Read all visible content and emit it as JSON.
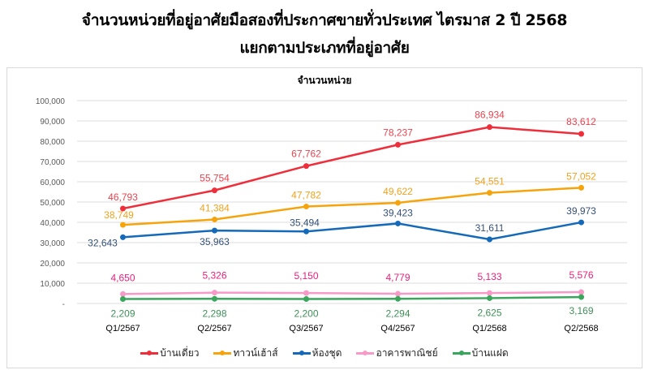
{
  "title": {
    "line1": "จำนวนหน่วยที่อยู่อาศัยมือสองที่ประกาศขายทั่วประเทศ ไตรมาส 2 ปี 2568",
    "line2": "แยกตามประเภทที่อยู่อาศัย"
  },
  "chart_data": {
    "type": "line",
    "title": "จำนวนหน่วย",
    "xlabel": "",
    "ylabel": "",
    "ylim": [
      0,
      100000
    ],
    "yticks": [
      "-",
      "10,000",
      "20,000",
      "30,000",
      "40,000",
      "50,000",
      "60,000",
      "70,000",
      "80,000",
      "90,000",
      "100,000"
    ],
    "grid": true,
    "legend_position": "bottom",
    "categories": [
      "Q1/2567",
      "Q2/2567",
      "Q3/2567",
      "Q4/2567",
      "Q1/2568",
      "Q2/2568"
    ],
    "series": [
      {
        "name": "บ้านเดี่ยว",
        "color": "#EE2E3B",
        "label_color": "#E8434E",
        "values": [
          46793,
          55754,
          67762,
          78237,
          86934,
          83612
        ],
        "labels": [
          "46,793",
          "55,754",
          "67,762",
          "78,237",
          "86,934",
          "83,612"
        ]
      },
      {
        "name": "ทาวน์เฮ้าส์",
        "color": "#F5A40C",
        "label_color": "#F2A21D",
        "values": [
          38749,
          41384,
          47782,
          49622,
          54551,
          57052
        ],
        "labels": [
          "38,749",
          "41,384",
          "47,782",
          "49,622",
          "54,551",
          "57,052"
        ]
      },
      {
        "name": "ห้องชุด",
        "color": "#1469B8",
        "label_color": "#34507A",
        "values": [
          32643,
          35963,
          35494,
          39423,
          31611,
          39973
        ],
        "labels": [
          "32,643",
          "35,963",
          "35,494",
          "39,423",
          "31,611",
          "39,973"
        ]
      },
      {
        "name": "อาคารพาณิชย์",
        "color": "#F79AC8",
        "label_color": "#E8207A",
        "values": [
          4650,
          5326,
          5150,
          4779,
          5133,
          5576
        ],
        "labels": [
          "4,650",
          "5,326",
          "5,150",
          "4,779",
          "5,133",
          "5,576"
        ]
      },
      {
        "name": "บ้านแฝด",
        "color": "#3AA65C",
        "label_color": "#3F8F58",
        "values": [
          2209,
          2298,
          2200,
          2294,
          2625,
          3169
        ],
        "labels": [
          "2,209",
          "2,298",
          "2,200",
          "2,294",
          "2,625",
          "3,169"
        ]
      }
    ]
  }
}
